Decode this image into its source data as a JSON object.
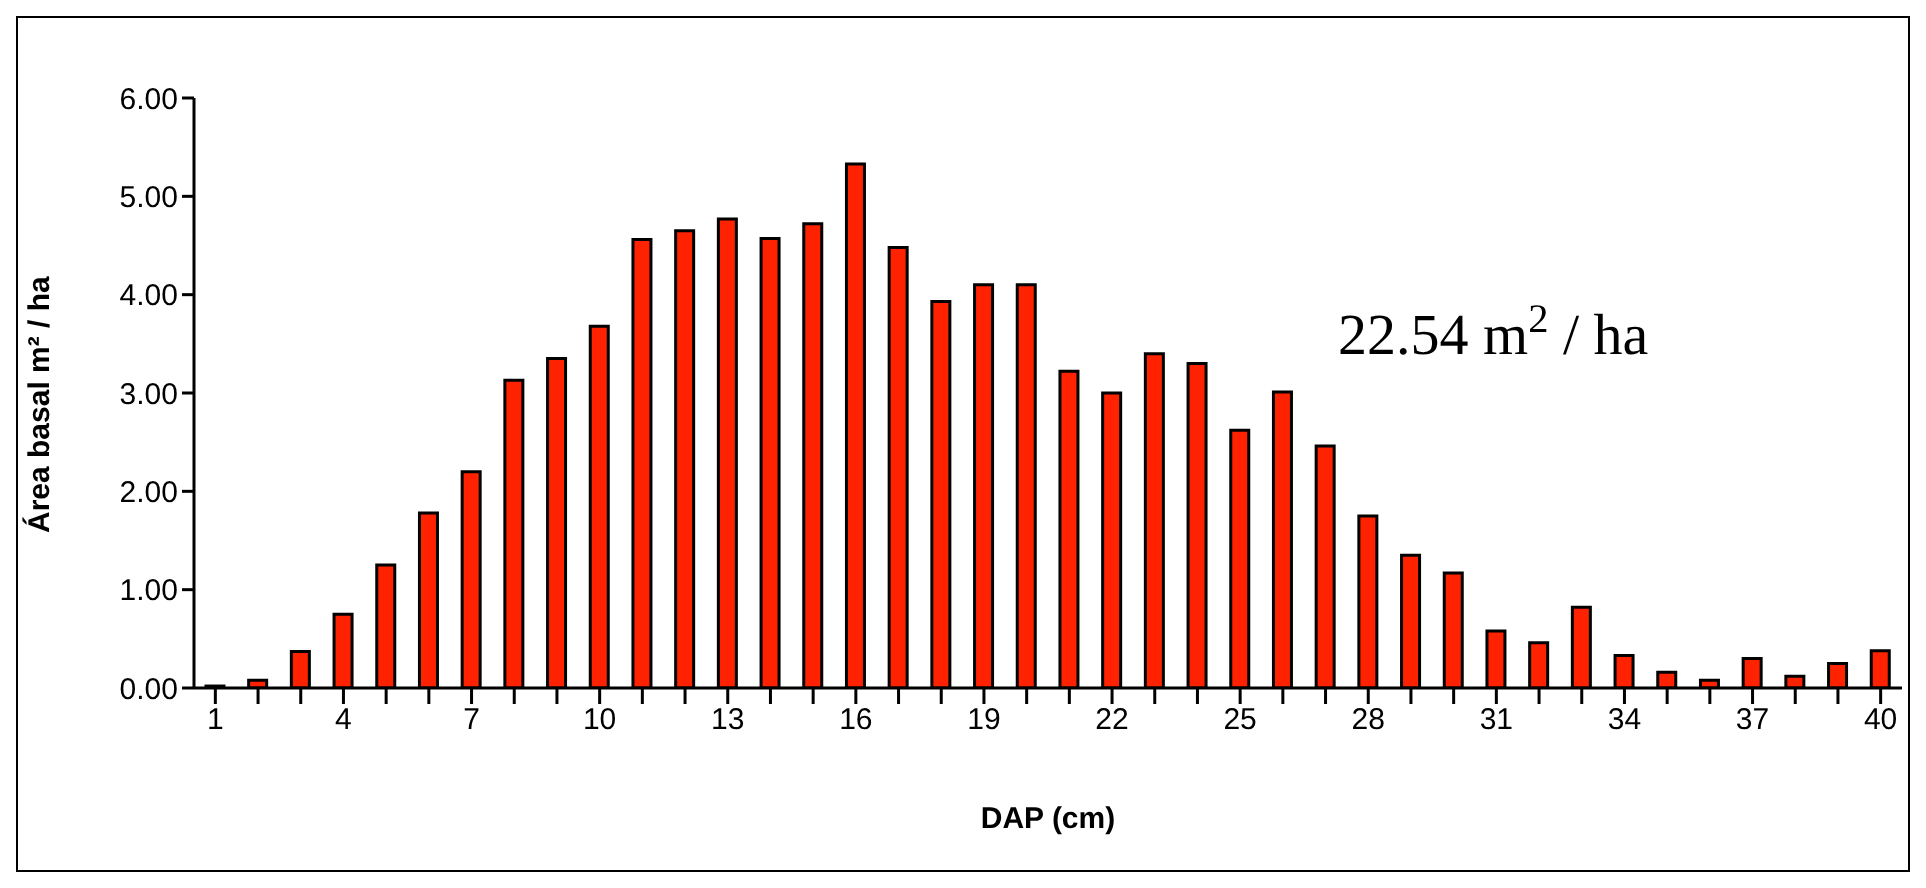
{
  "chart_data": {
    "type": "bar",
    "categories": [
      "1",
      null,
      null,
      "4",
      null,
      null,
      "7",
      null,
      null,
      "10",
      null,
      null,
      "13",
      null,
      null,
      "16",
      null,
      null,
      "19",
      null,
      null,
      "22",
      null,
      null,
      "25",
      null,
      null,
      "28",
      null,
      null,
      "31",
      null,
      null,
      "34",
      null,
      null,
      "37",
      null,
      null,
      "40"
    ],
    "series": [
      {
        "color": "#ff2200",
        "values": [
          0.02,
          0.08,
          0.37,
          0.75,
          1.25,
          1.78,
          2.2,
          3.13,
          3.35,
          3.68,
          4.56,
          4.65,
          4.77,
          4.57,
          4.72,
          5.33,
          4.48,
          3.93,
          4.1,
          4.1,
          3.22,
          3.0,
          3.4,
          3.3,
          2.62,
          3.01,
          2.46,
          1.75,
          1.35,
          1.17,
          0.58,
          0.46,
          0.82,
          0.33,
          0.16,
          0.08,
          0.3,
          0.12,
          0.25,
          0.38
        ]
      }
    ],
    "xlabel": "DAP (cm)",
    "ylabel": "Área basal  m² / ha",
    "ylim": [
      0,
      6
    ],
    "yticks": [
      {
        "value": 0,
        "label": "0.00"
      },
      {
        "value": 1,
        "label": "1.00"
      },
      {
        "value": 2,
        "label": "2.00"
      },
      {
        "value": 3,
        "label": "3.00"
      },
      {
        "value": 4,
        "label": "4.00"
      },
      {
        "value": 5,
        "label": "5.00"
      },
      {
        "value": 6,
        "label": "6.00"
      }
    ],
    "annotations": [
      "22.54 m$^{2}$ / ha"
    ],
    "grid": false,
    "legend": false
  }
}
